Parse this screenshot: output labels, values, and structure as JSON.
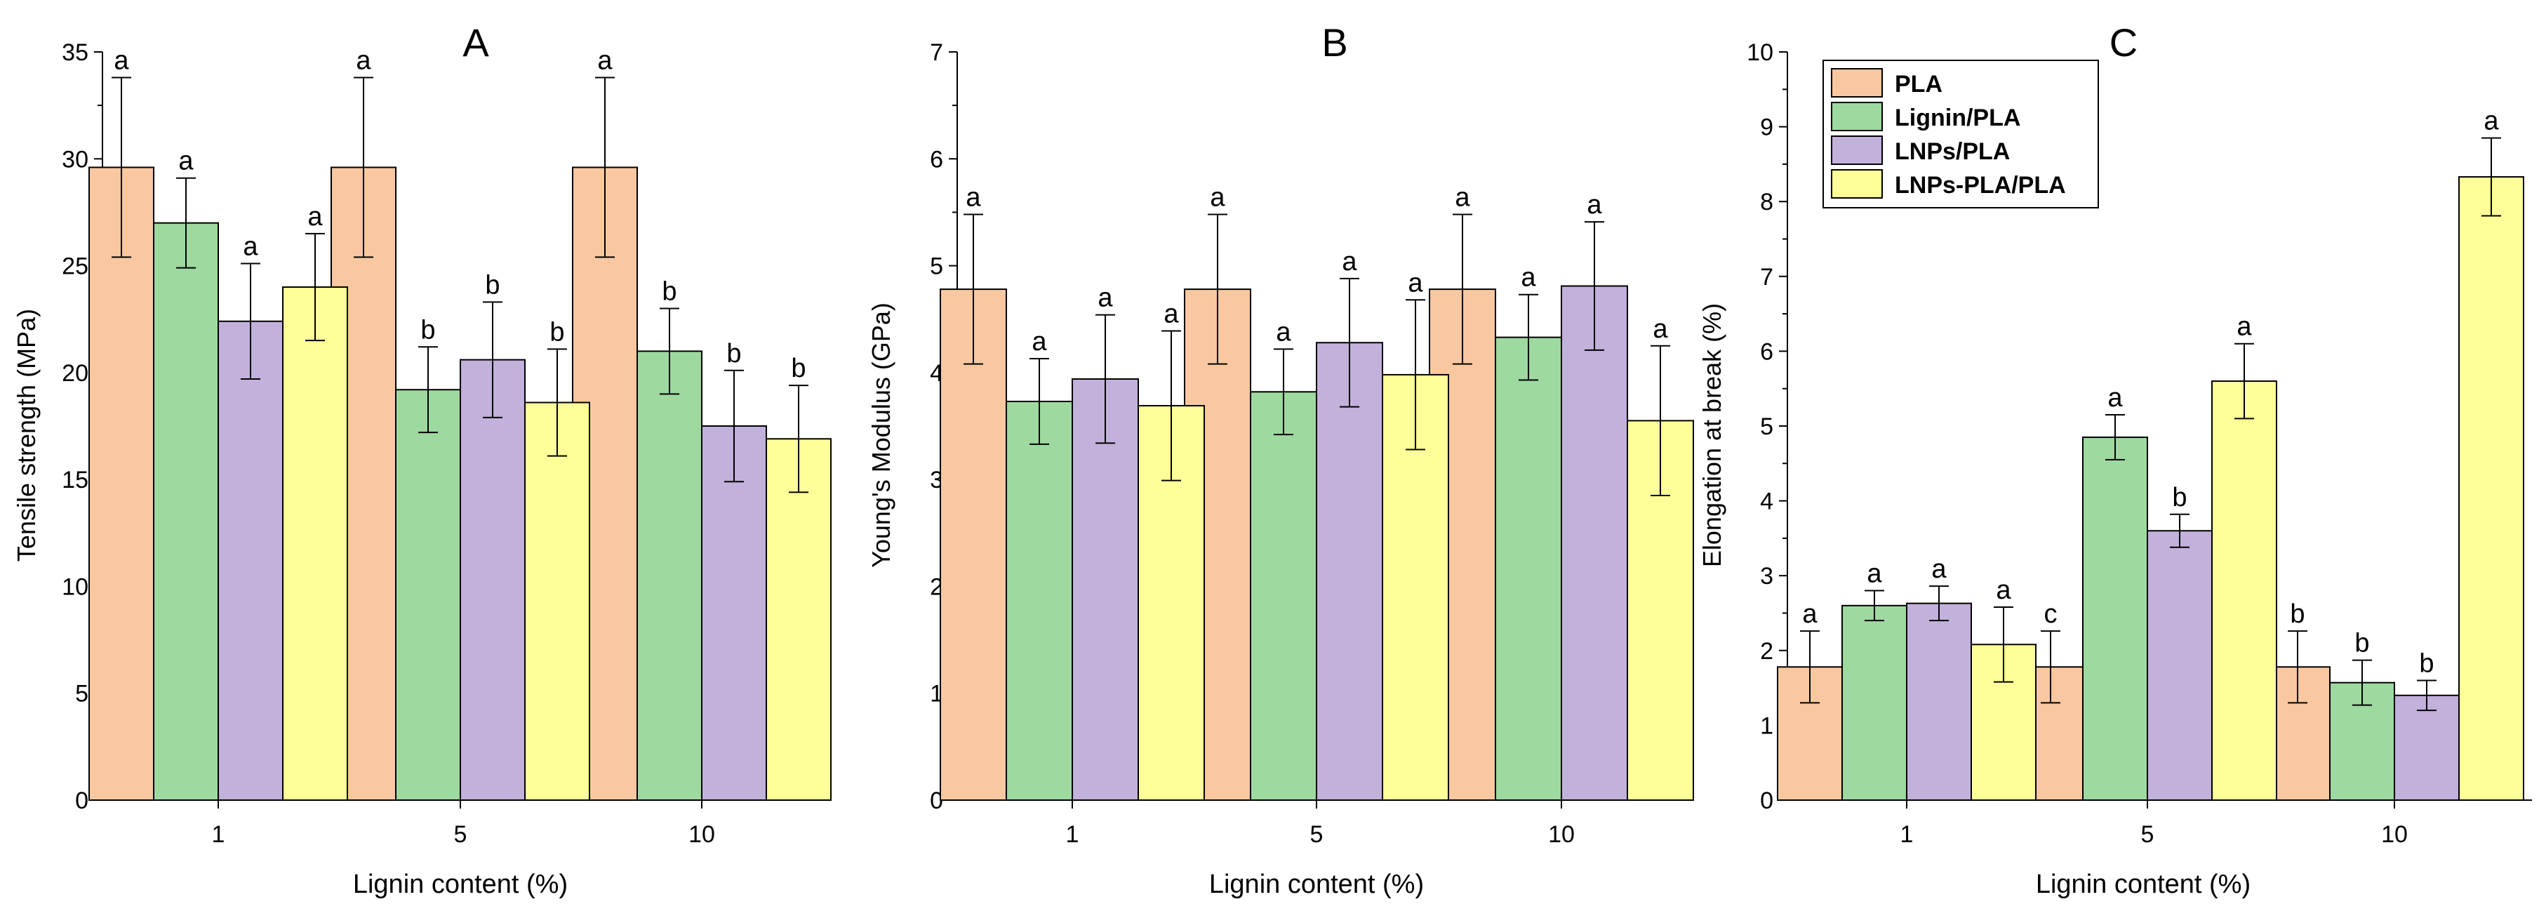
{
  "series_names": [
    "PLA",
    "Lignin/PLA",
    "LNPs/PLA",
    "LNPs-PLA/PLA"
  ],
  "colors": {
    "PLA": "#F9C8A0",
    "Lignin/PLA": "#9ED9A0",
    "LNPs/PLA": "#C2B1DB",
    "LNPs-PLA/PLA": "#FFFF99",
    "bar_stroke": "#000000",
    "axis": "#000000"
  },
  "chart_data": [
    {
      "panel": "A",
      "type": "bar",
      "title": "A",
      "xlabel": "Lignin content (%)",
      "ylabel": "Tensile strength (MPa)",
      "categories": [
        "1",
        "5",
        "10"
      ],
      "ylim": [
        0,
        35
      ],
      "yticks": [
        0,
        5,
        10,
        15,
        20,
        25,
        30,
        35
      ],
      "series": [
        {
          "name": "PLA",
          "values": [
            29.6,
            29.6,
            29.6
          ],
          "errors": [
            4.2,
            4.2,
            4.2
          ],
          "labels": [
            "a",
            "a",
            "a"
          ]
        },
        {
          "name": "Lignin/PLA",
          "values": [
            27.0,
            19.2,
            21.0
          ],
          "errors": [
            2.1,
            2.0,
            2.0
          ],
          "labels": [
            "a",
            "b",
            "b"
          ]
        },
        {
          "name": "LNPs/PLA",
          "values": [
            22.4,
            20.6,
            17.5
          ],
          "errors": [
            2.7,
            2.7,
            2.6
          ],
          "labels": [
            "a",
            "b",
            "b"
          ]
        },
        {
          "name": "LNPs-PLA/PLA",
          "values": [
            24.0,
            18.6,
            16.9
          ],
          "errors": [
            2.5,
            2.5,
            2.5
          ],
          "labels": [
            "a",
            "b",
            "b"
          ]
        }
      ]
    },
    {
      "panel": "B",
      "type": "bar",
      "title": "B",
      "xlabel": "Lignin content (%)",
      "ylabel": "Young's Modulus (GPa)",
      "categories": [
        "1",
        "5",
        "10"
      ],
      "ylim": [
        0,
        7
      ],
      "yticks": [
        0,
        1,
        2,
        3,
        4,
        5,
        6,
        7
      ],
      "series": [
        {
          "name": "PLA",
          "values": [
            4.78,
            4.78,
            4.78
          ],
          "errors": [
            0.7,
            0.7,
            0.7
          ],
          "labels": [
            "a",
            "a",
            "a"
          ]
        },
        {
          "name": "Lignin/PLA",
          "values": [
            3.73,
            3.82,
            4.33
          ],
          "errors": [
            0.4,
            0.4,
            0.4
          ],
          "labels": [
            "a",
            "a",
            "a"
          ]
        },
        {
          "name": "LNPs/PLA",
          "values": [
            3.94,
            4.28,
            4.81
          ],
          "errors": [
            0.6,
            0.6,
            0.6
          ],
          "labels": [
            "a",
            "a",
            "a"
          ]
        },
        {
          "name": "LNPs-PLA/PLA",
          "values": [
            3.69,
            3.98,
            3.55
          ],
          "errors": [
            0.7,
            0.7,
            0.7
          ],
          "labels": [
            "a",
            "a",
            "a"
          ]
        }
      ]
    },
    {
      "panel": "C",
      "type": "bar",
      "title": "C",
      "xlabel": "Lignin content (%)",
      "ylabel": "Elongation at break (%)",
      "categories": [
        "1",
        "5",
        "10"
      ],
      "ylim": [
        0,
        10
      ],
      "yticks": [
        0,
        1,
        2,
        3,
        4,
        5,
        6,
        7,
        8,
        9,
        10
      ],
      "legend": "top-left",
      "series": [
        {
          "name": "PLA",
          "values": [
            1.78,
            1.78,
            1.78
          ],
          "errors": [
            0.48,
            0.48,
            0.48
          ],
          "labels": [
            "a",
            "c",
            "b"
          ]
        },
        {
          "name": "Lignin/PLA",
          "values": [
            2.6,
            4.85,
            1.57
          ],
          "errors": [
            0.2,
            0.3,
            0.3
          ],
          "labels": [
            "a",
            "a",
            "b"
          ]
        },
        {
          "name": "LNPs/PLA",
          "values": [
            2.63,
            3.6,
            1.4
          ],
          "errors": [
            0.23,
            0.22,
            0.2
          ],
          "labels": [
            "a",
            "b",
            "b"
          ]
        },
        {
          "name": "LNPs-PLA/PLA",
          "values": [
            2.08,
            5.6,
            8.33
          ],
          "errors": [
            0.5,
            0.5,
            0.52
          ],
          "labels": [
            "a",
            "a",
            "a"
          ]
        }
      ]
    }
  ]
}
